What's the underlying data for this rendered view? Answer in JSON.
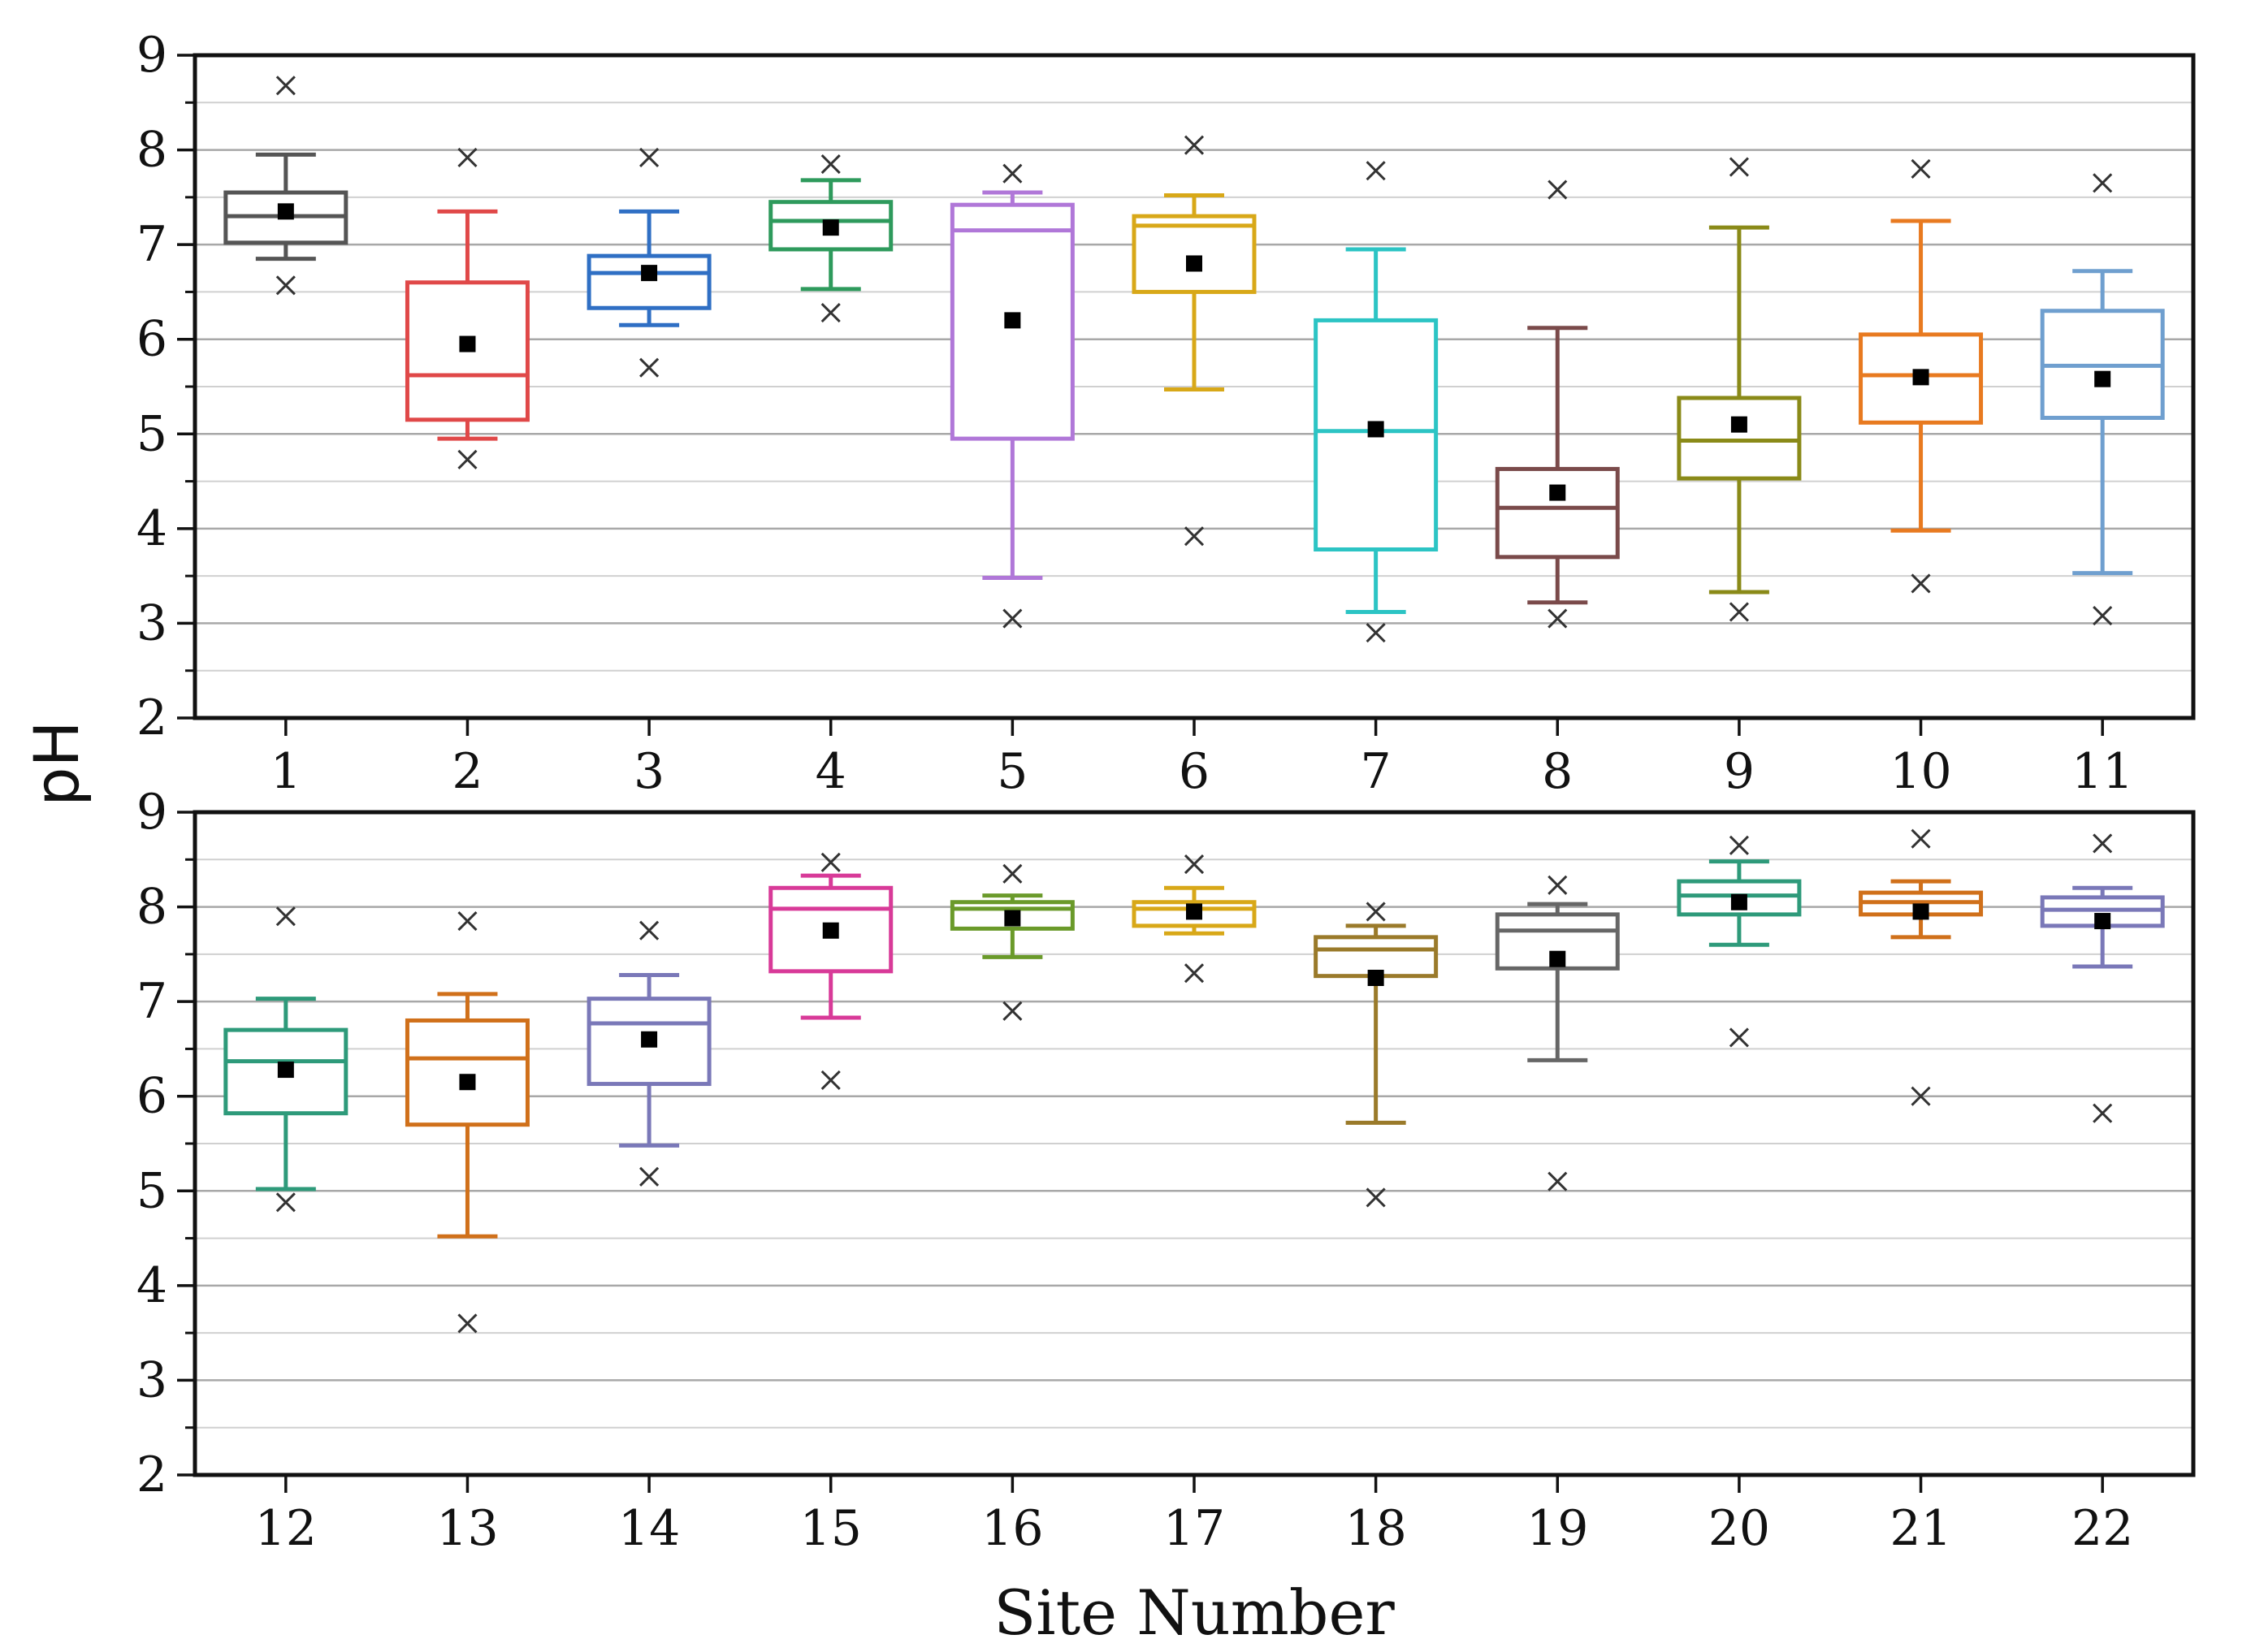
{
  "chart_data": {
    "type": "box",
    "ylabel": "pH",
    "xlabel": "Site Number",
    "ylim": [
      2,
      9
    ],
    "yticks": [
      2,
      3,
      4,
      5,
      6,
      7,
      8,
      9
    ],
    "grid": true,
    "panels": [
      {
        "sites": [
          {
            "label": "1",
            "color": "#555555",
            "whisker_low": 6.85,
            "q1": 7.02,
            "median": 7.3,
            "q3": 7.55,
            "whisker_high": 7.95,
            "mean": 7.35,
            "outlier_low": 6.57,
            "outlier_high": 8.68
          },
          {
            "label": "2",
            "color": "#e04848",
            "whisker_low": 4.95,
            "q1": 5.15,
            "median": 5.62,
            "q3": 6.6,
            "whisker_high": 7.35,
            "mean": 5.95,
            "outlier_low": 4.73,
            "outlier_high": 7.92
          },
          {
            "label": "3",
            "color": "#2f6fc4",
            "whisker_low": 6.15,
            "q1": 6.33,
            "median": 6.7,
            "q3": 6.88,
            "whisker_high": 7.35,
            "mean": 6.7,
            "outlier_low": 5.7,
            "outlier_high": 7.92
          },
          {
            "label": "4",
            "color": "#2e9a5c",
            "whisker_low": 6.53,
            "q1": 6.95,
            "median": 7.25,
            "q3": 7.45,
            "whisker_high": 7.68,
            "mean": 7.18,
            "outlier_low": 6.28,
            "outlier_high": 7.85
          },
          {
            "label": "5",
            "color": "#b077d8",
            "whisker_low": 3.48,
            "q1": 4.95,
            "median": 7.15,
            "q3": 7.42,
            "whisker_high": 7.55,
            "mean": 6.2,
            "outlier_low": 3.05,
            "outlier_high": 7.75
          },
          {
            "label": "6",
            "color": "#d8a818",
            "whisker_low": 5.47,
            "q1": 6.5,
            "median": 7.2,
            "q3": 7.3,
            "whisker_high": 7.52,
            "mean": 6.8,
            "outlier_low": 3.92,
            "outlier_high": 8.05
          },
          {
            "label": "7",
            "color": "#2cc4c4",
            "whisker_low": 3.12,
            "q1": 3.78,
            "median": 5.03,
            "q3": 6.2,
            "whisker_high": 6.95,
            "mean": 5.05,
            "outlier_low": 2.9,
            "outlier_high": 7.78
          },
          {
            "label": "8",
            "color": "#7a4a4a",
            "whisker_low": 3.22,
            "q1": 3.7,
            "median": 4.22,
            "q3": 4.63,
            "whisker_high": 6.12,
            "mean": 4.38,
            "outlier_low": 3.05,
            "outlier_high": 7.58
          },
          {
            "label": "9",
            "color": "#8a8a18",
            "whisker_low": 3.33,
            "q1": 4.53,
            "median": 4.93,
            "q3": 5.38,
            "whisker_high": 7.18,
            "mean": 5.1,
            "outlier_low": 3.12,
            "outlier_high": 7.82
          },
          {
            "label": "10",
            "color": "#e87a20",
            "whisker_low": 3.98,
            "q1": 5.12,
            "median": 5.62,
            "q3": 6.05,
            "whisker_high": 7.25,
            "mean": 5.6,
            "outlier_low": 3.42,
            "outlier_high": 7.8
          },
          {
            "label": "11",
            "color": "#6f9fcf",
            "whisker_low": 3.53,
            "q1": 5.17,
            "median": 5.72,
            "q3": 6.3,
            "whisker_high": 6.72,
            "mean": 5.58,
            "outlier_low": 3.08,
            "outlier_high": 7.65
          }
        ]
      },
      {
        "sites": [
          {
            "label": "12",
            "color": "#2e9a7a",
            "whisker_low": 5.02,
            "q1": 5.82,
            "median": 6.37,
            "q3": 6.7,
            "whisker_high": 7.03,
            "mean": 6.28,
            "outlier_low": 4.88,
            "outlier_high": 7.9
          },
          {
            "label": "13",
            "color": "#d0701a",
            "whisker_low": 4.52,
            "q1": 5.7,
            "median": 6.4,
            "q3": 6.8,
            "whisker_high": 7.08,
            "mean": 6.15,
            "outlier_low": 3.6,
            "outlier_high": 7.85
          },
          {
            "label": "14",
            "color": "#7a78b8",
            "whisker_low": 5.48,
            "q1": 6.13,
            "median": 6.77,
            "q3": 7.03,
            "whisker_high": 7.28,
            "mean": 6.6,
            "outlier_low": 5.15,
            "outlier_high": 7.75
          },
          {
            "label": "15",
            "color": "#d83a98",
            "whisker_low": 6.83,
            "q1": 7.32,
            "median": 7.98,
            "q3": 8.2,
            "whisker_high": 8.33,
            "mean": 7.75,
            "outlier_low": 6.17,
            "outlier_high": 8.47
          },
          {
            "label": "16",
            "color": "#6a9a2a",
            "whisker_low": 7.47,
            "q1": 7.77,
            "median": 7.98,
            "q3": 8.05,
            "whisker_high": 8.12,
            "mean": 7.88,
            "outlier_low": 6.9,
            "outlier_high": 8.35
          },
          {
            "label": "17",
            "color": "#d8a818",
            "whisker_low": 7.72,
            "q1": 7.8,
            "median": 7.98,
            "q3": 8.05,
            "whisker_high": 8.2,
            "mean": 7.95,
            "outlier_low": 7.3,
            "outlier_high": 8.45
          },
          {
            "label": "18",
            "color": "#9a7a2a",
            "whisker_low": 5.72,
            "q1": 7.27,
            "median": 7.55,
            "q3": 7.68,
            "whisker_high": 7.8,
            "mean": 7.25,
            "outlier_low": 4.93,
            "outlier_high": 7.95
          },
          {
            "label": "19",
            "color": "#666666",
            "whisker_low": 6.38,
            "q1": 7.35,
            "median": 7.75,
            "q3": 7.92,
            "whisker_high": 8.03,
            "mean": 7.45,
            "outlier_low": 5.1,
            "outlier_high": 8.23
          },
          {
            "label": "20",
            "color": "#2e9a7a",
            "whisker_low": 7.6,
            "q1": 7.92,
            "median": 8.12,
            "q3": 8.27,
            "whisker_high": 8.48,
            "mean": 8.05,
            "outlier_low": 6.62,
            "outlier_high": 8.65
          },
          {
            "label": "21",
            "color": "#d0701a",
            "whisker_low": 7.68,
            "q1": 7.92,
            "median": 8.05,
            "q3": 8.15,
            "whisker_high": 8.27,
            "mean": 7.95,
            "outlier_low": 6.0,
            "outlier_high": 8.72
          },
          {
            "label": "22",
            "color": "#7a78b8",
            "whisker_low": 7.37,
            "q1": 7.8,
            "median": 7.97,
            "q3": 8.1,
            "whisker_high": 8.2,
            "mean": 7.85,
            "outlier_low": 5.82,
            "outlier_high": 8.67
          }
        ]
      }
    ]
  }
}
